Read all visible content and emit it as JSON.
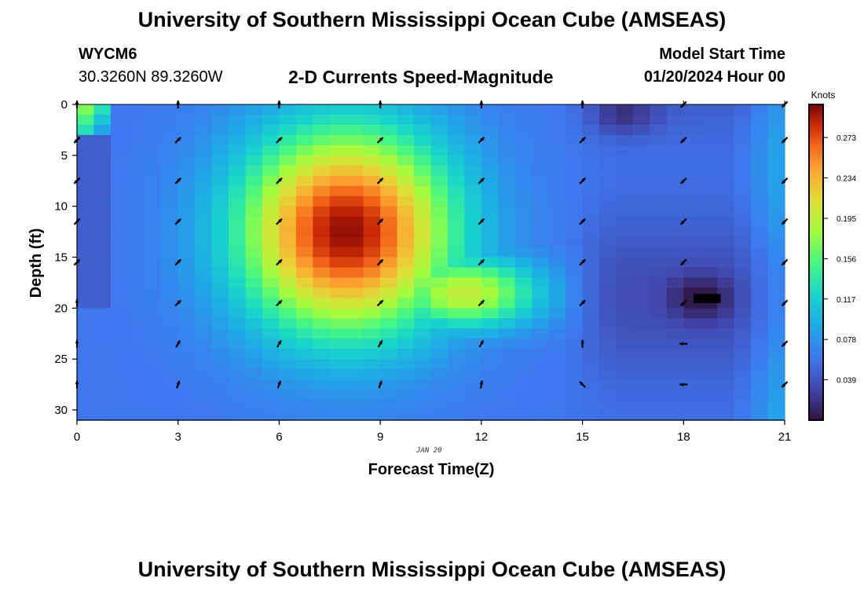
{
  "page": {
    "title": "University of Southern Mississippi Ocean Cube (AMSEAS)",
    "footer_title": "University of Southern Mississippi Ocean Cube (AMSEAS)",
    "station": "WYCM6",
    "coords": "30.3260N  89.3260W",
    "model_start_label": "Model Start Time",
    "model_start_value": "01/20/2024 Hour 00",
    "date_label": "JAN 20"
  },
  "chart_data": {
    "type": "heatmap",
    "title": "2-D Currents Speed-Magnitude",
    "xlabel": "Forecast Time(Z)",
    "ylabel": "Depth (ft)",
    "xlim": [
      0,
      21
    ],
    "ylim": [
      0,
      31
    ],
    "xticks": [
      0,
      3,
      6,
      9,
      12,
      15,
      18,
      21
    ],
    "yticks": [
      0,
      5,
      10,
      15,
      20,
      25,
      30
    ],
    "colorbar": {
      "label": "Knots",
      "min": 0.0,
      "max": 0.305,
      "ticks": [
        0.039,
        0.078,
        0.117,
        0.156,
        0.195,
        0.234,
        0.273
      ]
    },
    "field_model": {
      "description": "approximate speed magnitude (knots) read from colors",
      "main_core": {
        "center_time": 8.0,
        "center_depth": 12.5,
        "peak": 0.3
      },
      "low_core": {
        "center_time": 18.5,
        "center_depth": 19.0,
        "min": 0.0
      }
    },
    "current_vectors": {
      "times": [
        0,
        3,
        6,
        9,
        12,
        15,
        18,
        21
      ],
      "depths": [
        0,
        3.5,
        7.5,
        11.5,
        15.5,
        19.5,
        23.5,
        27.5
      ],
      "direction_deg": [
        [
          0,
          0,
          0,
          0,
          0,
          0,
          225,
          225
        ],
        [
          225,
          45,
          45,
          45,
          45,
          45,
          225,
          225
        ],
        [
          225,
          45,
          45,
          45,
          45,
          45,
          225,
          225
        ],
        [
          45,
          45,
          45,
          45,
          45,
          45,
          225,
          225
        ],
        [
          45,
          45,
          45,
          45,
          45,
          45,
          225,
          225
        ],
        [
          0,
          45,
          45,
          45,
          45,
          45,
          225,
          225
        ],
        [
          0,
          30,
          30,
          30,
          30,
          0,
          270,
          225
        ],
        [
          0,
          20,
          20,
          20,
          10,
          315,
          270,
          225
        ]
      ]
    }
  }
}
